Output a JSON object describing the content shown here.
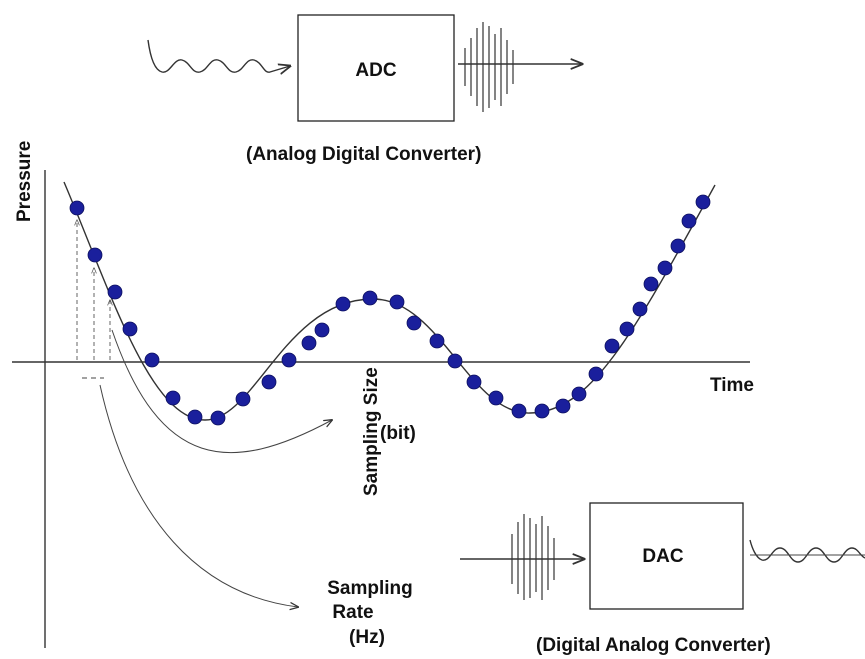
{
  "adc": {
    "label": "ADC",
    "caption": "(Analog Digital Converter)"
  },
  "dac": {
    "label": "DAC",
    "caption": "(Digital Analog Converter)"
  },
  "axes": {
    "y_label": "Pressure",
    "x_label": "Time"
  },
  "annotations": {
    "sampling_size_line1": "Sampling Size",
    "sampling_size_line2": "(bit)",
    "sampling_rate_line1": "Sampling",
    "sampling_rate_line2": "Rate",
    "sampling_rate_line3": "(Hz)"
  },
  "colors": {
    "sample_dot": "#1a1f9c",
    "line": "#333333"
  }
}
